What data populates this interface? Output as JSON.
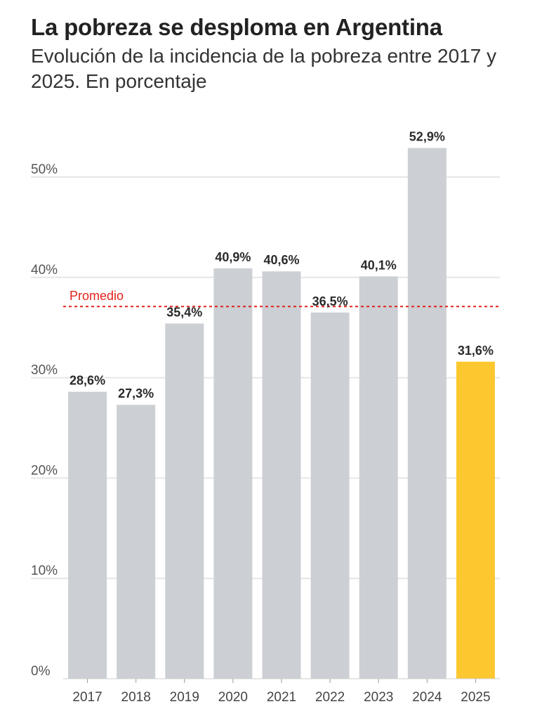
{
  "header": {
    "title": "La pobreza se desploma en Argentina",
    "subtitle": "Evolución de la incidencia de la pobreza entre 2017 y 2025. En porcentaje"
  },
  "chart_data": {
    "type": "bar",
    "categories": [
      "2017",
      "2018",
      "2019",
      "2020",
      "2021",
      "2022",
      "2023",
      "2024",
      "2025"
    ],
    "values": [
      28.6,
      27.3,
      35.4,
      40.9,
      40.6,
      36.5,
      40.1,
      52.9,
      31.6
    ],
    "data_labels": [
      "28,6%",
      "27,3%",
      "35,4%",
      "40,9%",
      "40,6%",
      "36,5%",
      "40,1%",
      "52,9%",
      "31,6%"
    ],
    "y_ticks": [
      0,
      10,
      20,
      30,
      40,
      50
    ],
    "y_tick_labels": [
      "0%",
      "10%",
      "20%",
      "30%",
      "40%",
      "50%"
    ],
    "ylim": [
      0,
      55
    ],
    "grid": true,
    "reference_line": {
      "label": "Promedio",
      "value": 37.1,
      "color": "#e2221b"
    },
    "highlight_index": 8,
    "colors": {
      "bar": "#cccfd4",
      "highlight": "#fdc82f",
      "grid": "#e6e6e6",
      "axis_text": "#555555",
      "label_text": "#2b2b2b"
    }
  }
}
